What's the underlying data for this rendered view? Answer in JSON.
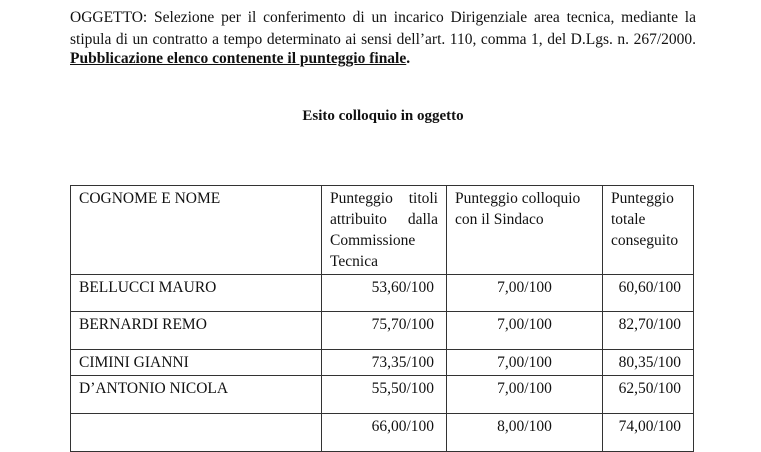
{
  "header": {
    "line1": "OGGETTO: Selezione  per il conferimento di un incarico Dirigenziale area tecnica, mediante la",
    "line2": "stipula di un contratto a tempo determinato ai sensi dell’art. 110, comma 1, del D.Lgs. n. 267/2000.",
    "line3": "Pubblicazione elenco contenente il punteggio finale",
    "line3_end": "."
  },
  "title": "Esito colloquio in oggetto",
  "table": {
    "headers": [
      "COGNOME E NOME",
      "Punteggio titoli attribuito dalla Commissione Tecnica",
      "Punteggio colloquio con il Sindaco",
      "Punteggio totale conseguito"
    ],
    "rows": [
      [
        "BELLUCCI MAURO",
        "53,60/100",
        "7,00/100",
        "60,60/100"
      ],
      [
        "BERNARDI REMO",
        "75,70/100",
        "7,00/100",
        "82,70/100"
      ],
      [
        "CIMINI GIANNI",
        "73,35/100",
        "7,00/100",
        "80,35/100"
      ],
      [
        "D’ANTONIO NICOLA",
        "55,50/100",
        "7,00/100",
        "62,50/100"
      ],
      [
        "",
        "66,00/100",
        "8,00/100",
        "74,00/100"
      ]
    ]
  }
}
